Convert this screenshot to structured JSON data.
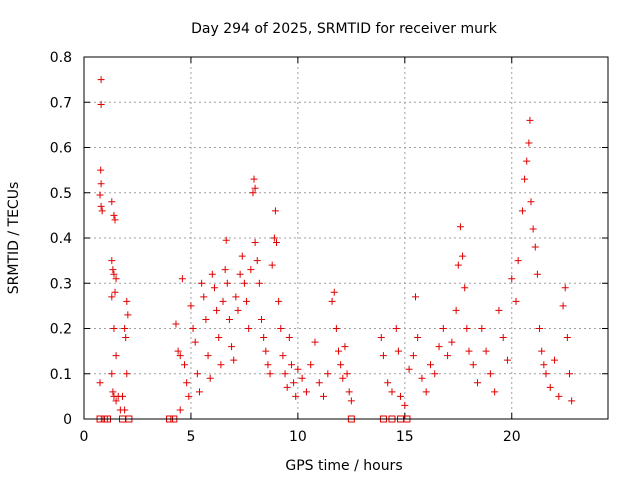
{
  "chart_data": {
    "type": "scatter",
    "title": "Day 294 of 2025, SRMTID for receiver murk",
    "xlabel": "GPS time / hours",
    "ylabel": "SRMTID / TECUs",
    "xlim": [
      0,
      24.5
    ],
    "ylim": [
      0,
      0.8
    ],
    "x_ticks": [
      0,
      5,
      10,
      15,
      20
    ],
    "y_ticks": [
      0,
      0.1,
      0.2,
      0.3,
      0.4,
      0.5,
      0.6,
      0.7,
      0.8
    ],
    "grid": true,
    "marker": "+",
    "color": "#e00000",
    "series": [
      {
        "points": [
          [
            0.8,
            0.75
          ],
          [
            0.8,
            0.695
          ],
          [
            0.78,
            0.55
          ],
          [
            0.8,
            0.52
          ],
          [
            0.75,
            0.495
          ],
          [
            0.8,
            0.47
          ],
          [
            0.85,
            0.46
          ],
          [
            0.75,
            0.08
          ],
          [
            1.3,
            0.48
          ],
          [
            1.4,
            0.45
          ],
          [
            1.45,
            0.44
          ],
          [
            1.3,
            0.35
          ],
          [
            1.35,
            0.33
          ],
          [
            1.4,
            0.32
          ],
          [
            1.5,
            0.31
          ],
          [
            1.45,
            0.28
          ],
          [
            1.3,
            0.27
          ],
          [
            1.4,
            0.2
          ],
          [
            1.5,
            0.14
          ],
          [
            1.3,
            0.1
          ],
          [
            1.35,
            0.06
          ],
          [
            1.4,
            0.05
          ],
          [
            1.5,
            0.04
          ],
          [
            1.6,
            0.05
          ],
          [
            1.8,
            0.05
          ],
          [
            1.9,
            0.2
          ],
          [
            1.95,
            0.18
          ],
          [
            2.0,
            0.26
          ],
          [
            2.05,
            0.23
          ],
          [
            2.0,
            0.1
          ],
          [
            1.9,
            0.02
          ],
          [
            1.7,
            0.02
          ],
          [
            4.3,
            0.21
          ],
          [
            4.4,
            0.15
          ],
          [
            4.5,
            0.14
          ],
          [
            4.6,
            0.31
          ],
          [
            4.7,
            0.12
          ],
          [
            4.8,
            0.08
          ],
          [
            4.9,
            0.05
          ],
          [
            4.5,
            0.02
          ],
          [
            5.0,
            0.25
          ],
          [
            5.1,
            0.2
          ],
          [
            5.2,
            0.17
          ],
          [
            5.3,
            0.1
          ],
          [
            5.4,
            0.06
          ],
          [
            5.5,
            0.3
          ],
          [
            5.6,
            0.27
          ],
          [
            5.7,
            0.22
          ],
          [
            5.8,
            0.14
          ],
          [
            5.9,
            0.09
          ],
          [
            6.0,
            0.32
          ],
          [
            6.1,
            0.29
          ],
          [
            6.2,
            0.24
          ],
          [
            6.3,
            0.18
          ],
          [
            6.4,
            0.12
          ],
          [
            6.5,
            0.26
          ],
          [
            6.6,
            0.33
          ],
          [
            6.65,
            0.395
          ],
          [
            6.7,
            0.3
          ],
          [
            6.8,
            0.22
          ],
          [
            6.9,
            0.16
          ],
          [
            7.0,
            0.13
          ],
          [
            7.1,
            0.27
          ],
          [
            7.2,
            0.24
          ],
          [
            7.3,
            0.32
          ],
          [
            7.4,
            0.36
          ],
          [
            7.5,
            0.3
          ],
          [
            7.6,
            0.26
          ],
          [
            7.7,
            0.2
          ],
          [
            7.8,
            0.33
          ],
          [
            7.9,
            0.5
          ],
          [
            7.95,
            0.53
          ],
          [
            8.0,
            0.51
          ],
          [
            8.0,
            0.39
          ],
          [
            8.1,
            0.35
          ],
          [
            8.2,
            0.3
          ],
          [
            8.3,
            0.22
          ],
          [
            8.4,
            0.18
          ],
          [
            8.5,
            0.15
          ],
          [
            8.6,
            0.12
          ],
          [
            8.7,
            0.1
          ],
          [
            8.8,
            0.34
          ],
          [
            8.9,
            0.4
          ],
          [
            8.95,
            0.46
          ],
          [
            9.0,
            0.39
          ],
          [
            9.1,
            0.26
          ],
          [
            9.2,
            0.2
          ],
          [
            9.3,
            0.14
          ],
          [
            9.4,
            0.1
          ],
          [
            9.5,
            0.07
          ],
          [
            9.6,
            0.18
          ],
          [
            9.7,
            0.12
          ],
          [
            9.8,
            0.08
          ],
          [
            9.9,
            0.05
          ],
          [
            10.0,
            0.11
          ],
          [
            10.2,
            0.09
          ],
          [
            10.4,
            0.06
          ],
          [
            10.6,
            0.12
          ],
          [
            10.8,
            0.17
          ],
          [
            11.0,
            0.08
          ],
          [
            11.2,
            0.05
          ],
          [
            11.4,
            0.1
          ],
          [
            11.6,
            0.26
          ],
          [
            11.7,
            0.28
          ],
          [
            11.8,
            0.2
          ],
          [
            11.9,
            0.15
          ],
          [
            12.0,
            0.12
          ],
          [
            12.1,
            0.09
          ],
          [
            12.2,
            0.16
          ],
          [
            12.3,
            0.1
          ],
          [
            12.4,
            0.06
          ],
          [
            12.5,
            0.04
          ],
          [
            13.9,
            0.18
          ],
          [
            14.0,
            0.14
          ],
          [
            14.2,
            0.08
          ],
          [
            14.4,
            0.06
          ],
          [
            14.6,
            0.2
          ],
          [
            14.7,
            0.15
          ],
          [
            14.8,
            0.05
          ],
          [
            15.0,
            0.03
          ],
          [
            15.2,
            0.11
          ],
          [
            15.4,
            0.14
          ],
          [
            15.5,
            0.27
          ],
          [
            15.6,
            0.18
          ],
          [
            15.8,
            0.09
          ],
          [
            16.0,
            0.06
          ],
          [
            16.2,
            0.12
          ],
          [
            16.4,
            0.1
          ],
          [
            16.6,
            0.16
          ],
          [
            16.8,
            0.2
          ],
          [
            17.0,
            0.14
          ],
          [
            17.2,
            0.17
          ],
          [
            17.4,
            0.24
          ],
          [
            17.5,
            0.34
          ],
          [
            17.6,
            0.425
          ],
          [
            17.7,
            0.36
          ],
          [
            17.8,
            0.29
          ],
          [
            17.9,
            0.2
          ],
          [
            18.0,
            0.15
          ],
          [
            18.2,
            0.12
          ],
          [
            18.4,
            0.08
          ],
          [
            18.6,
            0.2
          ],
          [
            18.8,
            0.15
          ],
          [
            19.0,
            0.1
          ],
          [
            19.2,
            0.06
          ],
          [
            19.4,
            0.24
          ],
          [
            19.6,
            0.18
          ],
          [
            19.8,
            0.13
          ],
          [
            20.0,
            0.31
          ],
          [
            20.2,
            0.26
          ],
          [
            20.3,
            0.35
          ],
          [
            20.5,
            0.46
          ],
          [
            20.6,
            0.53
          ],
          [
            20.7,
            0.57
          ],
          [
            20.8,
            0.61
          ],
          [
            20.85,
            0.66
          ],
          [
            20.9,
            0.48
          ],
          [
            21.0,
            0.42
          ],
          [
            21.1,
            0.38
          ],
          [
            21.2,
            0.32
          ],
          [
            21.3,
            0.2
          ],
          [
            21.4,
            0.15
          ],
          [
            21.5,
            0.12
          ],
          [
            21.6,
            0.1
          ],
          [
            21.8,
            0.07
          ],
          [
            22.0,
            0.13
          ],
          [
            22.2,
            0.05
          ],
          [
            22.4,
            0.25
          ],
          [
            22.5,
            0.29
          ],
          [
            22.6,
            0.18
          ],
          [
            22.7,
            0.1
          ],
          [
            22.8,
            0.04
          ]
        ],
        "zero_points": [
          0.75,
          0.95,
          1.1,
          1.8,
          2.1,
          4.0,
          4.2,
          12.5,
          14.0,
          14.4,
          14.8,
          15.1
        ]
      }
    ]
  }
}
